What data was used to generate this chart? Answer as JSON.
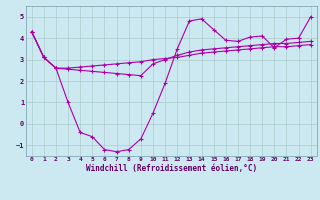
{
  "xlabel": "Windchill (Refroidissement éolien,°C)",
  "ylabel": "",
  "bg_color": "#cce8f0",
  "grid_color": "#aacccc",
  "line_color": "#aa00aa",
  "xlim": [
    -0.5,
    23.5
  ],
  "ylim": [
    -1.5,
    5.5
  ],
  "xticks": [
    0,
    1,
    2,
    3,
    4,
    5,
    6,
    7,
    8,
    9,
    10,
    11,
    12,
    13,
    14,
    15,
    16,
    17,
    18,
    19,
    20,
    21,
    22,
    23
  ],
  "yticks": [
    -1,
    0,
    1,
    2,
    3,
    4,
    5
  ],
  "series1_x": [
    0,
    1,
    2,
    3,
    4,
    5,
    6,
    7,
    8,
    9,
    10,
    11,
    12,
    13,
    14,
    15,
    16,
    17,
    18,
    19,
    20,
    21,
    22,
    23
  ],
  "series1_y": [
    4.3,
    3.1,
    2.6,
    1.0,
    -0.4,
    -0.6,
    -1.2,
    -1.3,
    -1.2,
    -0.7,
    0.5,
    1.9,
    3.5,
    4.8,
    4.9,
    4.4,
    3.9,
    3.85,
    4.05,
    4.1,
    3.55,
    3.95,
    4.0,
    5.0
  ],
  "series2_x": [
    0,
    1,
    2,
    3,
    4,
    5,
    6,
    7,
    8,
    9,
    10,
    11,
    12,
    13,
    14,
    15,
    16,
    17,
    18,
    19,
    20,
    21,
    22,
    23
  ],
  "series2_y": [
    4.3,
    3.1,
    2.6,
    2.6,
    2.65,
    2.7,
    2.75,
    2.8,
    2.85,
    2.9,
    3.0,
    3.05,
    3.1,
    3.2,
    3.3,
    3.35,
    3.4,
    3.45,
    3.5,
    3.55,
    3.6,
    3.6,
    3.65,
    3.7
  ],
  "series3_x": [
    0,
    1,
    2,
    3,
    4,
    5,
    6,
    7,
    8,
    9,
    10,
    11,
    12,
    13,
    14,
    15,
    16,
    17,
    18,
    19,
    20,
    21,
    22,
    23
  ],
  "series3_y": [
    4.3,
    3.1,
    2.6,
    2.55,
    2.5,
    2.45,
    2.4,
    2.35,
    2.3,
    2.25,
    2.8,
    3.0,
    3.2,
    3.35,
    3.45,
    3.5,
    3.55,
    3.6,
    3.65,
    3.7,
    3.75,
    3.75,
    3.8,
    3.85
  ]
}
